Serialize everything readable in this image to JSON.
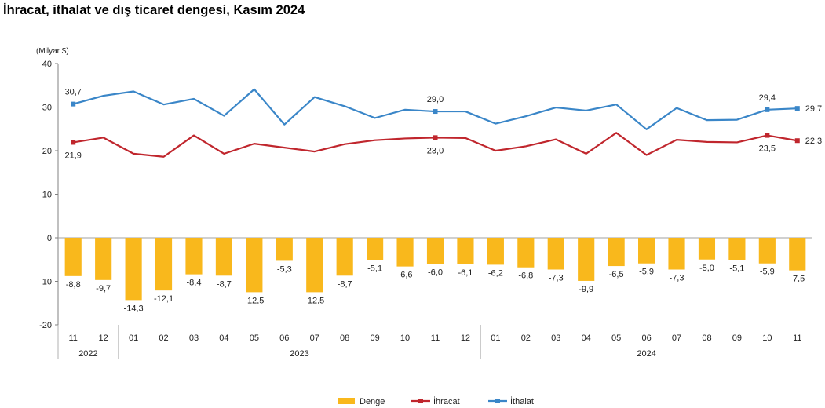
{
  "title": "İhracat, ithalat ve dış ticaret dengesi, Kasım 2024",
  "chart_data": {
    "type": "bar+line",
    "unit_label": "(Milyar $)",
    "ylim": [
      -20,
      40
    ],
    "yticks": [
      -20,
      -10,
      0,
      10,
      20,
      30,
      40
    ],
    "categories": [
      "11",
      "12",
      "01",
      "02",
      "03",
      "04",
      "05",
      "06",
      "07",
      "08",
      "09",
      "10",
      "11",
      "12",
      "01",
      "02",
      "03",
      "04",
      "05",
      "06",
      "07",
      "08",
      "09",
      "10",
      "11"
    ],
    "year_groups": [
      {
        "label": "2022",
        "start": 0,
        "end": 1
      },
      {
        "label": "2023",
        "start": 2,
        "end": 13
      },
      {
        "label": "2024",
        "start": 14,
        "end": 24
      }
    ],
    "series": [
      {
        "name": "Denge",
        "kind": "bar",
        "color": "#F9B81C",
        "values": [
          -8.8,
          -9.7,
          -14.3,
          -12.1,
          -8.4,
          -8.7,
          -12.5,
          -5.3,
          -12.5,
          -8.7,
          -5.1,
          -6.6,
          -6.0,
          -6.1,
          -6.2,
          -6.8,
          -7.3,
          -9.9,
          -6.5,
          -5.9,
          -7.3,
          -5.0,
          -5.1,
          -5.9,
          -7.5
        ],
        "labels": [
          "-8,8",
          "-9,7",
          "-14,3",
          "-12,1",
          "-8,4",
          "-8,7",
          "-12,5",
          "-5,3",
          "-12,5",
          "-8,7",
          "-5,1",
          "-6,6",
          "-6,0",
          "-6,1",
          "-6,2",
          "-6,8",
          "-7,3",
          "-9,9",
          "-6,5",
          "-5,9",
          "-7,3",
          "-5,0",
          "-5,1",
          "-5,9",
          "-7,5"
        ]
      },
      {
        "name": "İhracat",
        "kind": "line",
        "color": "#C0262D",
        "values": [
          21.9,
          23.0,
          19.3,
          18.6,
          23.5,
          19.3,
          21.6,
          20.7,
          19.8,
          21.5,
          22.4,
          22.8,
          23.0,
          22.9,
          20.0,
          21.0,
          22.6,
          19.3,
          24.1,
          19.0,
          22.5,
          22.0,
          21.9,
          23.5,
          22.3
        ],
        "point_labels": [
          {
            "index": 0,
            "text": "21,9"
          },
          {
            "index": 12,
            "text": "23,0"
          },
          {
            "index": 23,
            "text": "23,5"
          },
          {
            "index": 24,
            "text": "22,3"
          }
        ]
      },
      {
        "name": "İthalat",
        "kind": "line",
        "color": "#3A86C8",
        "values": [
          30.7,
          32.6,
          33.6,
          30.6,
          31.9,
          28.0,
          34.1,
          26.0,
          32.3,
          30.2,
          27.5,
          29.4,
          29.0,
          29.0,
          26.2,
          27.9,
          29.9,
          29.2,
          30.6,
          24.9,
          29.8,
          27.0,
          27.1,
          29.4,
          29.7
        ],
        "point_labels": [
          {
            "index": 0,
            "text": "30,7"
          },
          {
            "index": 12,
            "text": "29,0"
          },
          {
            "index": 23,
            "text": "29,4"
          },
          {
            "index": 24,
            "text": "29,7"
          }
        ]
      }
    ],
    "legend": [
      "Denge",
      "İhracat",
      "İthalat"
    ],
    "legend_position": "bottom",
    "grid": false
  }
}
